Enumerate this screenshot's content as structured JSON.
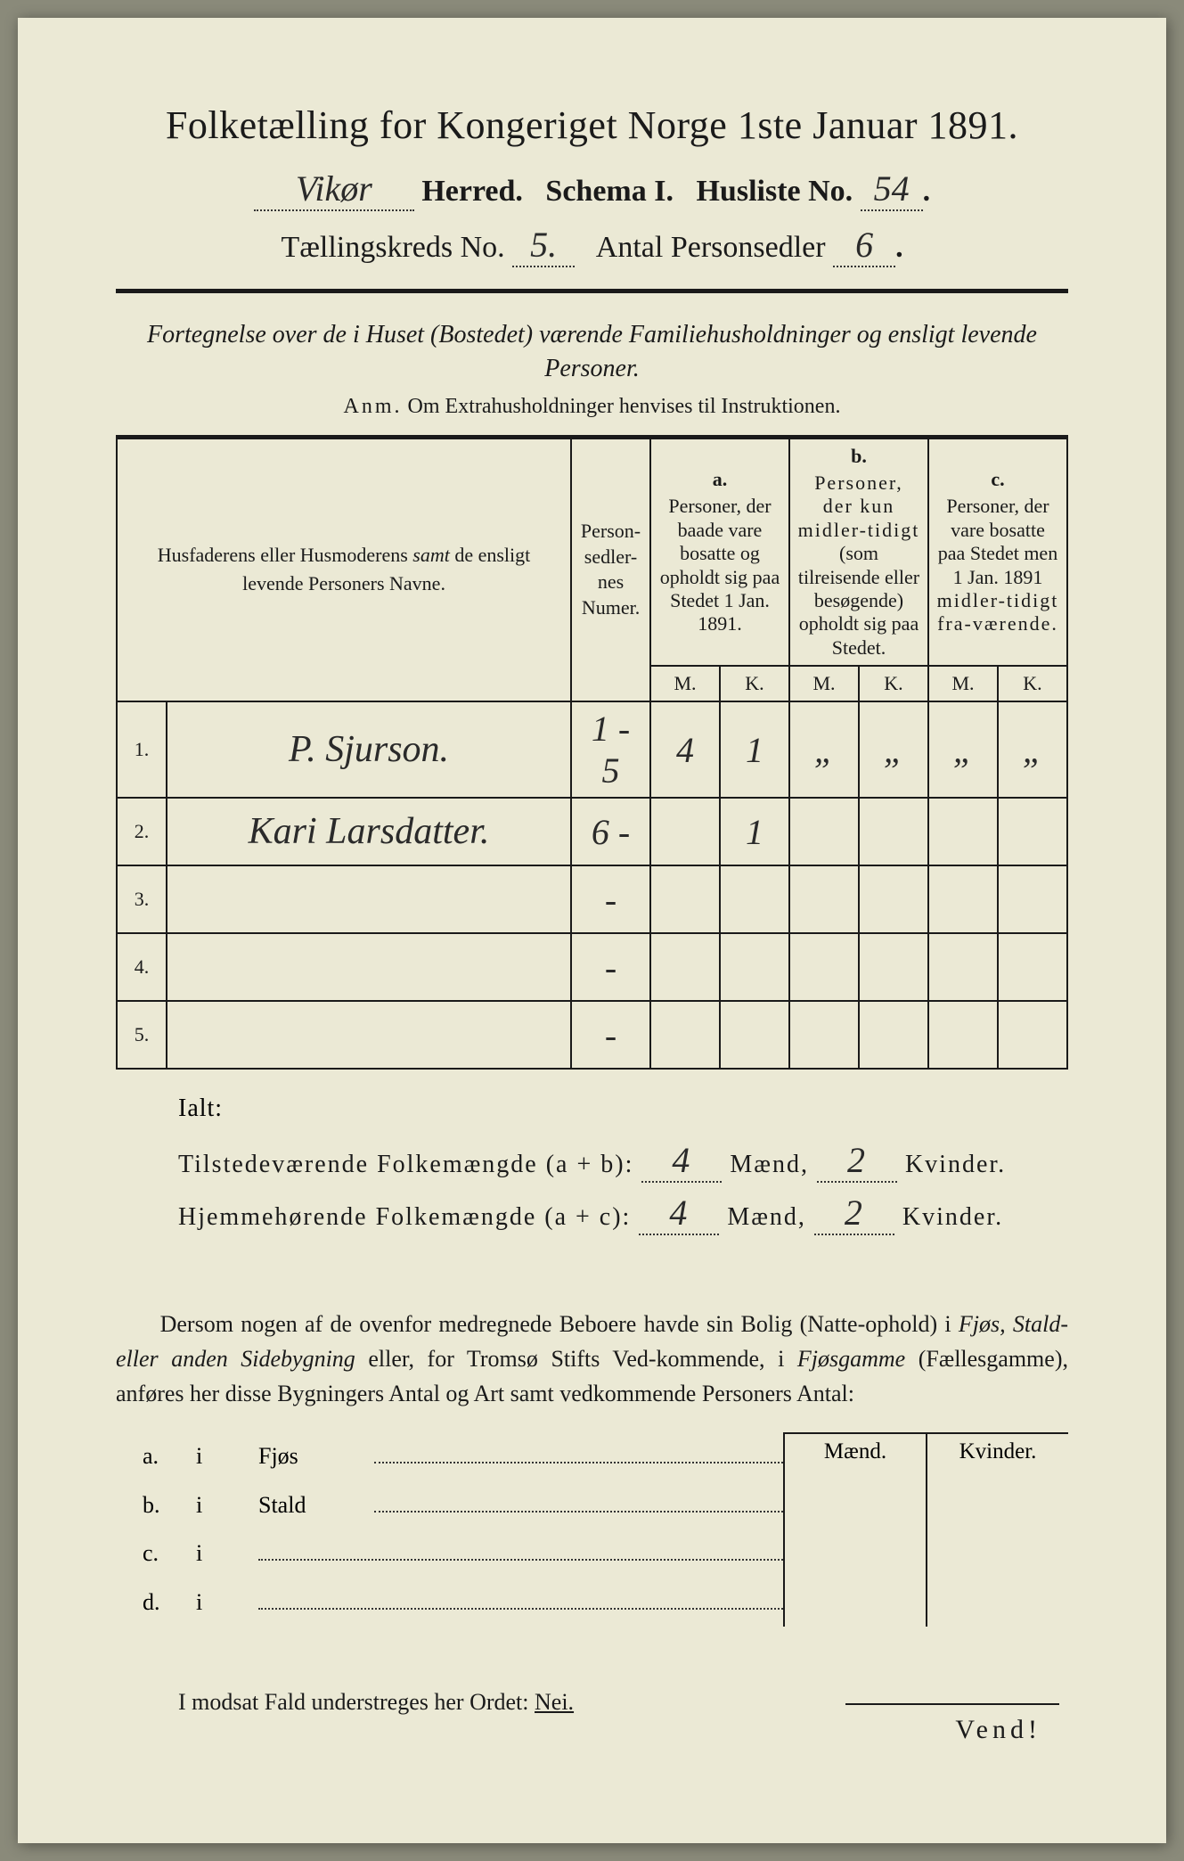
{
  "title": "Folketælling for Kongeriget Norge 1ste Januar 1891.",
  "herred_value": "Vikør",
  "herred_label": "Herred.",
  "schema_label": "Schema I.",
  "husliste_label": "Husliste No.",
  "husliste_value": "54",
  "kreds_label": "Tællingskreds No.",
  "kreds_value": "5.",
  "antal_label": "Antal Personsedler",
  "antal_value": "6",
  "instruction": "Fortegnelse over de i Huset (Bostedet) værende Familiehusholdninger og ensligt levende Personer.",
  "anm_label": "Anm.",
  "anm_text": "Om Extrahusholdninger henvises til Instruktionen.",
  "col_names": "Husfaderens eller Husmoderens samt de ensligt levende Personers Navne.",
  "col_numer": "Person-\nsedler-\nnes\nNumer.",
  "col_a_tag": "a.",
  "col_a": "Personer, der baade vare bosatte og opholdt sig paa Stedet 1 Jan. 1891.",
  "col_b_tag": "b.",
  "col_b": "Personer, der kun midler-tidigt (som tilreisende eller besøgende) opholdt sig paa Stedet.",
  "col_c_tag": "c.",
  "col_c": "Personer, der vare bosatte paa Stedet men 1 Jan. 1891 midler-tidigt fra-værende.",
  "mk_m": "M.",
  "mk_k": "K.",
  "rows": [
    {
      "n": "1.",
      "name": "P. Sjurson.",
      "numer": "1 - 5",
      "am": "4",
      "ak": "1",
      "bm": "„",
      "bk": "„",
      "cm": "„",
      "ck": "„"
    },
    {
      "n": "2.",
      "name": "Kari Larsdatter.",
      "numer": "6 -",
      "am": "",
      "ak": "1",
      "bm": "",
      "bk": "",
      "cm": "",
      "ck": ""
    },
    {
      "n": "3.",
      "name": "",
      "numer": "-",
      "am": "",
      "ak": "",
      "bm": "",
      "bk": "",
      "cm": "",
      "ck": ""
    },
    {
      "n": "4.",
      "name": "",
      "numer": "-",
      "am": "",
      "ak": "",
      "bm": "",
      "bk": "",
      "cm": "",
      "ck": ""
    },
    {
      "n": "5.",
      "name": "",
      "numer": "-",
      "am": "",
      "ak": "",
      "bm": "",
      "bk": "",
      "cm": "",
      "ck": ""
    }
  ],
  "ialt": "Ialt:",
  "sum1_label": "Tilstedeværende Folkemængde (a + b):",
  "sum2_label": "Hjemmehørende Folkemængde (a + c):",
  "maend": "Mænd,",
  "kvinder": "Kvinder.",
  "sum_m": "4",
  "sum_k": "2",
  "sum2_m": "4",
  "sum2_k": "2",
  "para": "Dersom nogen af de ovenfor medregnede Beboere havde sin Bolig (Natte-ophold) i Fjøs, Stald- eller anden Sidebygning eller, for Tromsø Stifts Ved-kommende, i Fjøsgamme (Fællesgamme), anføres her disse Bygningers Antal og Art samt vedkommende Personers Antal:",
  "bl_a": "a.",
  "bl_b": "b.",
  "bl_c": "c.",
  "bl_d": "d.",
  "bl_i": "i",
  "bl_fjos": "Fjøs",
  "bl_stald": "Stald",
  "mk_maend": "Mænd.",
  "mk_kvinder": "Kvinder.",
  "nei_line_pre": "I modsat Fald understreges her Ordet: ",
  "nei": "Nei.",
  "vend": "Vend!",
  "colors": {
    "paper": "#ebe9d5",
    "ink": "#1a1a1a",
    "background": "#8a8a7a"
  }
}
